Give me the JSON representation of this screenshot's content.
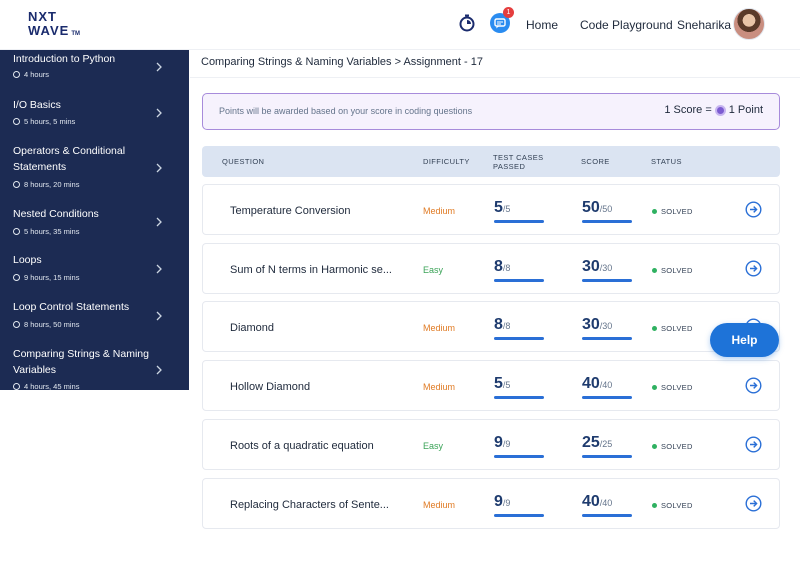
{
  "brand": {
    "line1": "NXT",
    "line2": "WAVE",
    "tm": "TM"
  },
  "header": {
    "notification_count": "1",
    "nav": {
      "home": "Home",
      "playground": "Code Playground",
      "user": "Sneharika"
    }
  },
  "sidebar": {
    "items": [
      {
        "title": "Introduction to Python",
        "duration": "4 hours"
      },
      {
        "title": "I/O Basics",
        "duration": "5 hours, 5 mins"
      },
      {
        "title": "Operators & Conditional Statements",
        "duration": "8 hours, 20 mins"
      },
      {
        "title": "Nested Conditions",
        "duration": "5 hours, 35 mins"
      },
      {
        "title": "Loops",
        "duration": "9 hours, 15 mins"
      },
      {
        "title": "Loop Control Statements",
        "duration": "8 hours, 50 mins"
      },
      {
        "title": "Comparing Strings & Naming Variables",
        "duration": "4 hours, 45 mins"
      }
    ]
  },
  "breadcrumb": "Comparing Strings & Naming Variables > Assignment - 17",
  "points_banner": {
    "message": "Points will be awarded based on your score in coding questions",
    "score_label": "1 Score =",
    "point_label": "1 Point"
  },
  "table": {
    "headers": {
      "question": "QUESTION",
      "difficulty": "DIFFICULTY",
      "tests_line1": "TEST CASES",
      "tests_line2": "PASSED",
      "score": "SCORE",
      "status": "STATUS"
    },
    "rows": [
      {
        "question": "Temperature Conversion",
        "difficulty": "Medium",
        "tests_passed": "5",
        "tests_total": "/5",
        "score": "50",
        "score_total": "/50",
        "status": "SOLVED",
        "test_progress": 1.0,
        "score_progress": 1.0
      },
      {
        "question": "Sum of N terms in Harmonic se...",
        "difficulty": "Easy",
        "tests_passed": "8",
        "tests_total": "/8",
        "score": "30",
        "score_total": "/30",
        "status": "SOLVED",
        "test_progress": 1.0,
        "score_progress": 1.0
      },
      {
        "question": "Diamond",
        "difficulty": "Medium",
        "tests_passed": "8",
        "tests_total": "/8",
        "score": "30",
        "score_total": "/30",
        "status": "SOLVED",
        "test_progress": 1.0,
        "score_progress": 1.0
      },
      {
        "question": "Hollow Diamond",
        "difficulty": "Medium",
        "tests_passed": "5",
        "tests_total": "/5",
        "score": "40",
        "score_total": "/40",
        "status": "SOLVED",
        "test_progress": 1.0,
        "score_progress": 1.0
      },
      {
        "question": "Roots of a quadratic equation",
        "difficulty": "Easy",
        "tests_passed": "9",
        "tests_total": "/9",
        "score": "25",
        "score_total": "/25",
        "status": "SOLVED",
        "test_progress": 1.0,
        "score_progress": 1.0
      },
      {
        "question": "Replacing Characters of Sente...",
        "difficulty": "Medium",
        "tests_passed": "9",
        "tests_total": "/9",
        "score": "40",
        "score_total": "/40",
        "status": "SOLVED",
        "test_progress": 1.0,
        "score_progress": 1.0
      }
    ]
  },
  "help_button": "Help",
  "colors": {
    "sidebar_bg": "#1c2b53",
    "accent": "#1e73d8",
    "medium": "#e07b24",
    "easy": "#3aa357",
    "solved": "#2fb161"
  }
}
